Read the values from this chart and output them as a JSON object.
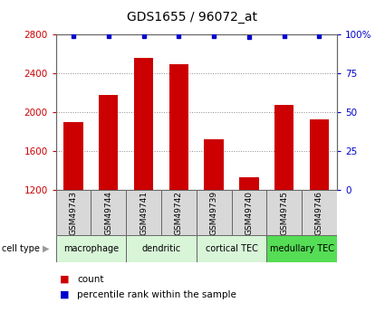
{
  "title": "GDS1655 / 96072_at",
  "samples": [
    "GSM49743",
    "GSM49744",
    "GSM49741",
    "GSM49742",
    "GSM49739",
    "GSM49740",
    "GSM49745",
    "GSM49746"
  ],
  "counts": [
    1900,
    2180,
    2560,
    2490,
    1720,
    1330,
    2080,
    1930
  ],
  "percentiles": [
    99,
    99,
    99,
    99,
    99,
    98,
    99,
    99
  ],
  "ylim_left": [
    1200,
    2800
  ],
  "ylim_right": [
    0,
    100
  ],
  "yticks_left": [
    1200,
    1600,
    2000,
    2400,
    2800
  ],
  "yticks_right": [
    0,
    25,
    50,
    75,
    100
  ],
  "cell_types": [
    {
      "label": "macrophage",
      "start": 0,
      "end": 2,
      "color": "#d8f5d8"
    },
    {
      "label": "dendritic",
      "start": 2,
      "end": 4,
      "color": "#d8f5d8"
    },
    {
      "label": "cortical TEC",
      "start": 4,
      "end": 6,
      "color": "#d8f5d8"
    },
    {
      "label": "medullary TEC",
      "start": 6,
      "end": 8,
      "color": "#55dd55"
    }
  ],
  "bar_color": "#cc0000",
  "dot_color": "#0000cc",
  "grid_color": "#888888",
  "left_tick_color": "#cc0000",
  "right_tick_color": "#0000cc",
  "title_fontsize": 10,
  "tick_fontsize": 7.5,
  "sample_fontsize": 6.5,
  "ct_fontsize": 7,
  "legend_fontsize": 7.5
}
